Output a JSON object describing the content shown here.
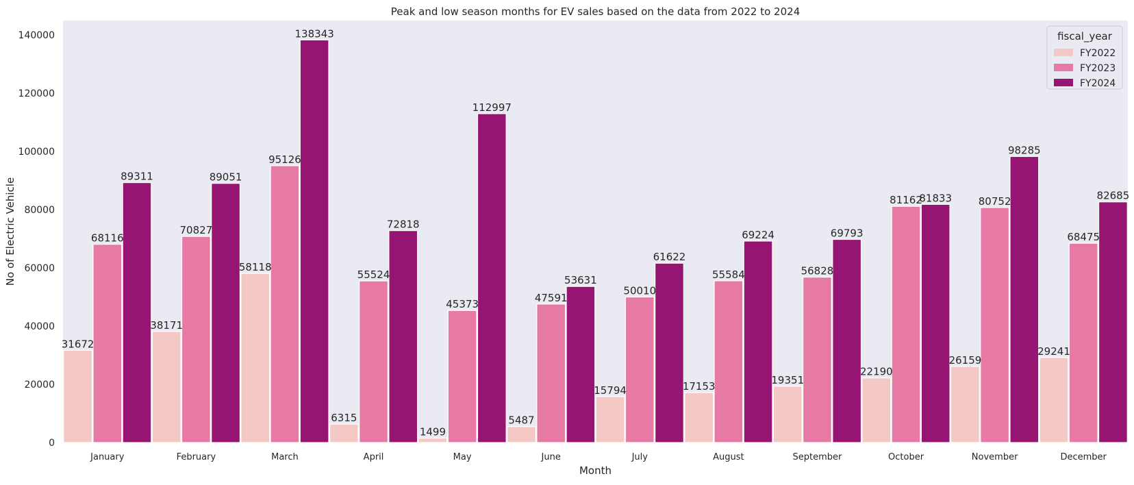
{
  "chart_data": {
    "type": "bar",
    "title": "Peak and low season months for EV sales based on the data from 2022 to 2024",
    "xlabel": "Month",
    "ylabel": "No of Electric Vehicle",
    "categories": [
      "January",
      "February",
      "March",
      "April",
      "May",
      "June",
      "July",
      "August",
      "September",
      "October",
      "November",
      "December"
    ],
    "series": [
      {
        "name": "FY2022",
        "color": "#f4c8c4",
        "values": [
          31672,
          38171,
          58118,
          6315,
          1499,
          5487,
          15794,
          17153,
          19351,
          22190,
          26159,
          29241
        ]
      },
      {
        "name": "FY2023",
        "color": "#e67aa4",
        "values": [
          68116,
          70827,
          95126,
          55524,
          45373,
          47591,
          50010,
          55584,
          56828,
          81162,
          80752,
          68475
        ]
      },
      {
        "name": "FY2024",
        "color": "#971572",
        "values": [
          89311,
          89051,
          138343,
          72818,
          112997,
          53631,
          61622,
          69224,
          69793,
          81833,
          98285,
          82685
        ]
      }
    ],
    "ylim": [
      0,
      145000
    ],
    "yticks": [
      "0",
      "20000",
      "40000",
      "60000",
      "80000",
      "100000",
      "120000",
      "140000"
    ],
    "grid": false,
    "background": "#eaeaf2",
    "legend": {
      "title": "fiscal_year",
      "position": "top-right"
    }
  }
}
